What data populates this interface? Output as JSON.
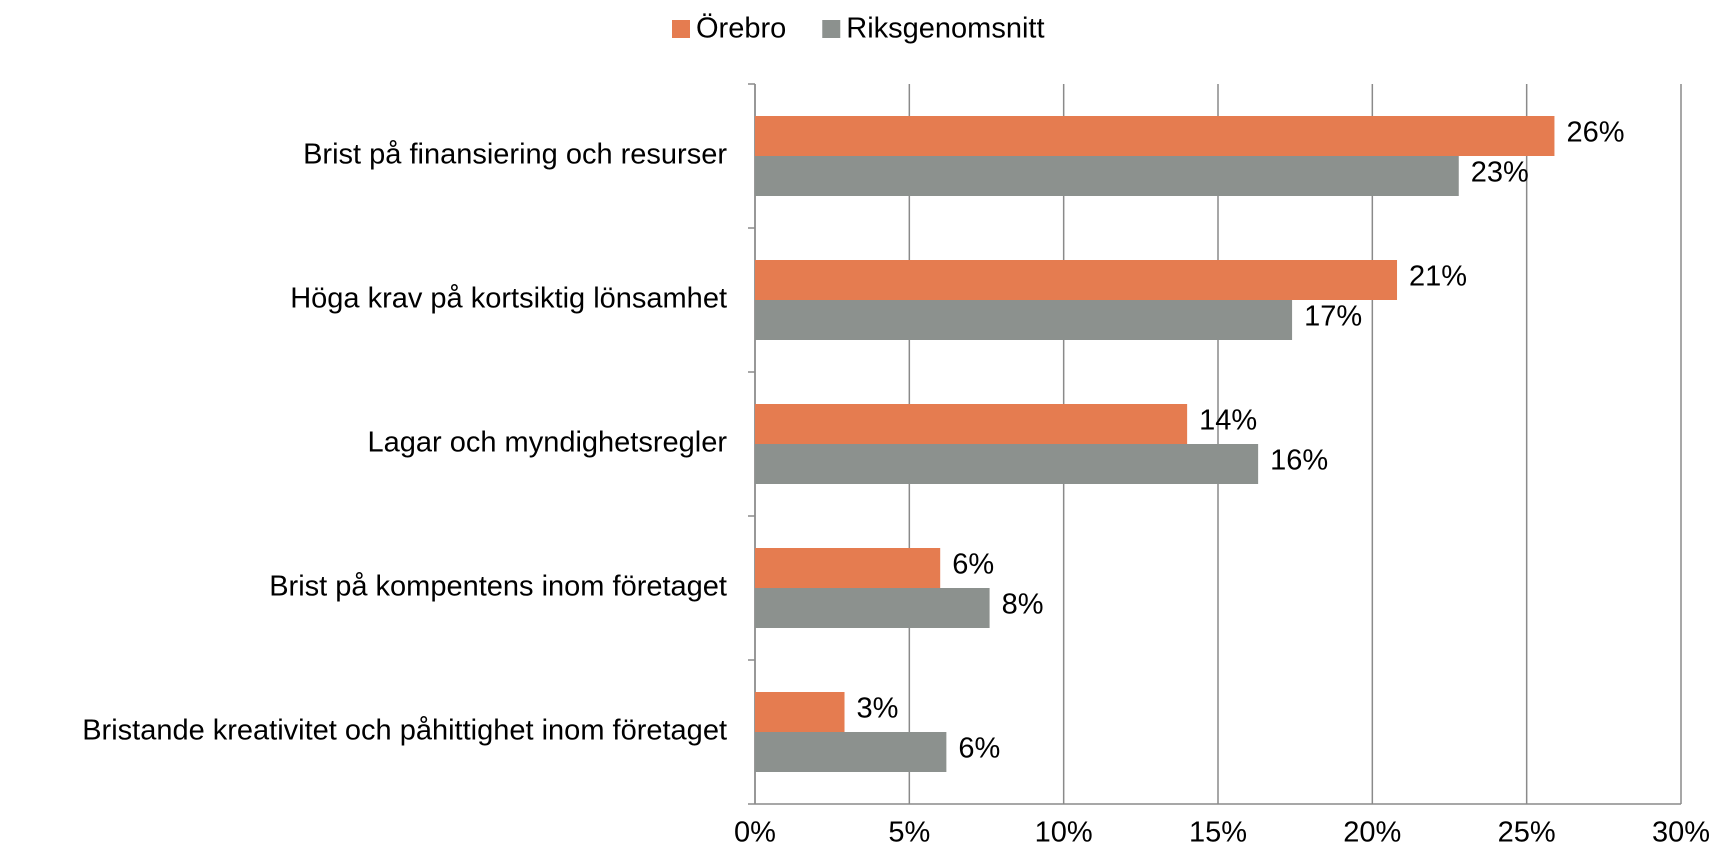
{
  "chart_data": {
    "type": "hbar",
    "categories": [
      "Brist på finansiering och resurser",
      "Höga krav på kortsiktig lönsamhet",
      "Lagar och myndighetsregler",
      "Brist på kompentens inom företaget",
      "Bristande kreativitet och påhittighet inom företaget"
    ],
    "series": [
      {
        "name": "Örebro",
        "color": "#e57c50",
        "values": [
          25.9,
          20.8,
          14.0,
          6.0,
          2.9
        ],
        "value_labels": [
          "26%",
          "21%",
          "14%",
          "6%",
          "3%"
        ]
      },
      {
        "name": "Riksgenomsnitt",
        "color": "#8c918e",
        "values": [
          22.8,
          17.4,
          16.3,
          7.6,
          6.2
        ],
        "value_labels": [
          "23%",
          "17%",
          "16%",
          "8%",
          "6%"
        ]
      }
    ],
    "xlim": [
      0,
      30
    ],
    "xticks": [
      {
        "value": 0,
        "label": "0%"
      },
      {
        "value": 5,
        "label": "5%"
      },
      {
        "value": 10,
        "label": "10%"
      },
      {
        "value": 15,
        "label": "15%"
      },
      {
        "value": 20,
        "label": "20%"
      },
      {
        "value": 25,
        "label": "25%"
      },
      {
        "value": 30,
        "label": "30%"
      }
    ],
    "grid": true,
    "legend": "top"
  }
}
